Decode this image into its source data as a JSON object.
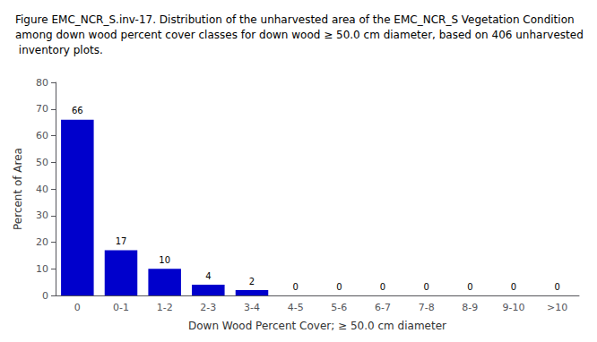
{
  "chart_data": {
    "type": "bar",
    "title": "Figure EMC_NCR_S.inv-17. Distribution of the unharvested area of the EMC_NCR_S Vegetation Condition among down wood percent cover classes for down wood ≥ 50.0 cm diameter, based on 406 unharvested inventory plots.",
    "categories": [
      "0",
      "0-1",
      "1-2",
      "2-3",
      "3-4",
      "4-5",
      "5-6",
      "6-7",
      "7-8",
      "8-9",
      "9-10",
      ">10"
    ],
    "values": [
      66,
      17,
      10,
      4,
      2,
      0,
      0,
      0,
      0,
      0,
      0,
      0
    ],
    "color": "#0000CC",
    "xlabel": "Down Wood Percent Cover; ≥ 50.0 cm diameter",
    "ylabel": "Percent of Area",
    "ylim": [
      0,
      80
    ],
    "yticks": [
      0,
      10,
      20,
      30,
      40,
      50,
      60,
      70,
      80
    ],
    "grid": false,
    "data_labels": true
  }
}
